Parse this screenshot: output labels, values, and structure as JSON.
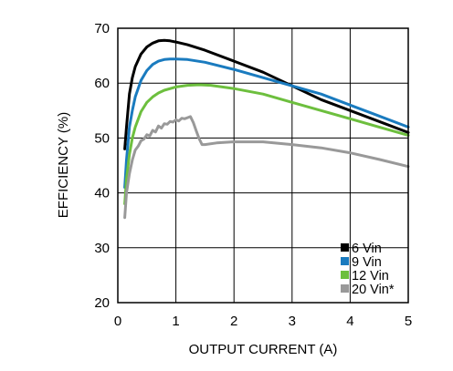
{
  "chart_data": {
    "type": "line",
    "title": "",
    "xlabel": "OUTPUT CURRENT (A)",
    "ylabel": "EFFICIENCY (%)",
    "xlim": [
      0,
      5
    ],
    "ylim": [
      20,
      70
    ],
    "xticks": [
      0,
      1,
      2,
      3,
      4,
      5
    ],
    "yticks": [
      20,
      30,
      40,
      50,
      60,
      70
    ],
    "grid": true,
    "legend_position": "bottom-right",
    "series": [
      {
        "name": "6 Vin",
        "color": "#000000",
        "x": [
          0.12,
          0.15,
          0.2,
          0.25,
          0.3,
          0.4,
          0.5,
          0.6,
          0.7,
          0.8,
          0.9,
          1.0,
          1.2,
          1.5,
          2.0,
          2.5,
          3.0,
          3.5,
          4.0,
          4.5,
          5.0
        ],
        "y": [
          48.0,
          52.0,
          58.0,
          61.0,
          63.0,
          65.3,
          66.6,
          67.3,
          67.7,
          67.8,
          67.7,
          67.5,
          67.0,
          66.0,
          64.0,
          62.0,
          59.5,
          57.0,
          55.0,
          53.0,
          51.0
        ]
      },
      {
        "name": "9 Vin",
        "color": "#1a7bbf",
        "x": [
          0.12,
          0.15,
          0.2,
          0.25,
          0.3,
          0.4,
          0.5,
          0.6,
          0.7,
          0.8,
          0.9,
          1.0,
          1.2,
          1.5,
          2.0,
          2.5,
          3.0,
          3.5,
          4.0,
          4.5,
          5.0
        ],
        "y": [
          41.0,
          46.0,
          52.0,
          55.0,
          57.5,
          60.5,
          62.3,
          63.4,
          64.0,
          64.3,
          64.4,
          64.4,
          64.3,
          63.8,
          62.5,
          61.0,
          59.5,
          58.0,
          56.0,
          54.0,
          52.0
        ]
      },
      {
        "name": "12 Vin",
        "color": "#6dbf3e",
        "x": [
          0.12,
          0.15,
          0.2,
          0.25,
          0.3,
          0.4,
          0.5,
          0.6,
          0.7,
          0.8,
          1.0,
          1.2,
          1.4,
          1.6,
          2.0,
          2.5,
          3.0,
          3.5,
          4.0,
          4.5,
          5.0
        ],
        "y": [
          38.0,
          42.5,
          47.0,
          50.0,
          52.0,
          54.8,
          56.5,
          57.5,
          58.2,
          58.7,
          59.3,
          59.6,
          59.7,
          59.6,
          59.0,
          58.0,
          56.5,
          55.0,
          53.5,
          52.0,
          50.5
        ]
      },
      {
        "name": "20 Vin*",
        "color": "#999999",
        "x": [
          0.12,
          0.15,
          0.2,
          0.25,
          0.3,
          0.35,
          0.4,
          0.45,
          0.5,
          0.55,
          0.6,
          0.65,
          0.7,
          0.75,
          0.8,
          0.85,
          0.9,
          0.95,
          1.0,
          1.05,
          1.1,
          1.15,
          1.2,
          1.25,
          1.3,
          1.35,
          1.4,
          1.45,
          1.5,
          1.7,
          2.0,
          2.5,
          3.0,
          3.5,
          4.0,
          4.5,
          5.0
        ],
        "y": [
          35.5,
          40.0,
          43.5,
          46.0,
          47.8,
          48.5,
          49.5,
          49.8,
          50.6,
          50.4,
          51.4,
          51.1,
          52.2,
          51.8,
          52.6,
          52.5,
          53.0,
          52.9,
          53.3,
          53.1,
          53.6,
          53.5,
          53.7,
          53.9,
          52.8,
          51.3,
          49.9,
          48.8,
          48.8,
          49.1,
          49.3,
          49.3,
          48.8,
          48.2,
          47.3,
          46.1,
          44.8
        ]
      }
    ]
  }
}
